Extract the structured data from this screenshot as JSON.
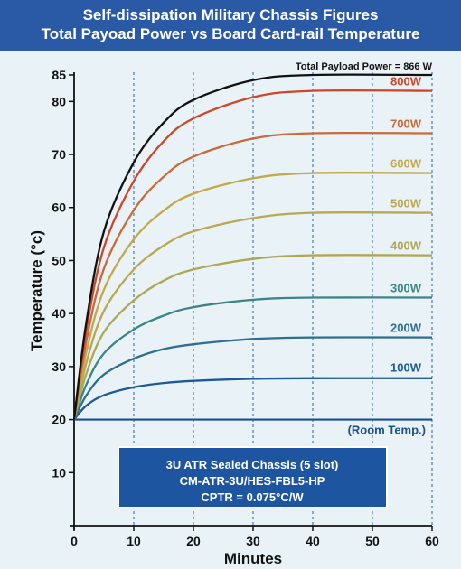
{
  "header": {
    "title_line1": "Self-dissipation Military Chassis Figures",
    "title_line2": "Total Payoad Power vs Board Card-rail Temperature"
  },
  "colors": {
    "header_bg": "#2a5aa5",
    "plot_bg": "#e9f2f7",
    "grid": "#4a77b0",
    "room_line": "#1a4f91",
    "infobox_bg": "#1d55a0"
  },
  "infobox": {
    "line1": "3U ATR Sealed Chassis (5 slot)",
    "line2": "CM-ATR-3U/HES-FBL5-HP",
    "line3": "CPTR = 0.075°C/W"
  },
  "chart_data": {
    "type": "line",
    "title": "Total Payoad Power vs Board Card-rail Temperature",
    "xlabel": "Minutes",
    "ylabel": "Temperature (°c)",
    "xlim": [
      0,
      60
    ],
    "ylim": [
      0,
      87
    ],
    "x_ticks": [
      0,
      10,
      20,
      30,
      40,
      50,
      60
    ],
    "y_ticks": [
      10,
      20,
      30,
      40,
      50,
      60,
      70,
      80,
      85
    ],
    "grid": "vertical dashed",
    "legend": "labels at right end of each curve",
    "room_temperature": {
      "value": 20,
      "label": "(Room Temp.)"
    },
    "series": [
      {
        "name": "100W",
        "plateau": 28,
        "color": "#1c5a98",
        "points": [
          [
            0,
            20
          ],
          [
            2,
            22.6
          ],
          [
            5,
            24.6
          ],
          [
            10,
            26.1
          ],
          [
            15,
            26.9
          ],
          [
            20,
            27.3
          ],
          [
            30,
            27.7
          ],
          [
            40,
            27.8
          ],
          [
            60,
            27.8
          ]
        ]
      },
      {
        "name": "200W",
        "plateau": 35.5,
        "color": "#2e6f8f",
        "points": [
          [
            0,
            20
          ],
          [
            2,
            24.5
          ],
          [
            5,
            28.5
          ],
          [
            10,
            31.5
          ],
          [
            15,
            33.3
          ],
          [
            20,
            34.2
          ],
          [
            30,
            35.2
          ],
          [
            40,
            35.5
          ],
          [
            60,
            35.5
          ]
        ]
      },
      {
        "name": "300W",
        "plateau": 43,
        "color": "#3d8585",
        "points": [
          [
            0,
            20
          ],
          [
            2,
            26.5
          ],
          [
            5,
            32.5
          ],
          [
            10,
            37
          ],
          [
            15,
            39.6
          ],
          [
            20,
            41.2
          ],
          [
            30,
            42.6
          ],
          [
            40,
            43
          ],
          [
            60,
            43
          ]
        ]
      },
      {
        "name": "400W",
        "plateau": 51,
        "color": "#aca855",
        "points": [
          [
            0,
            20
          ],
          [
            2,
            28.5
          ],
          [
            5,
            36.5
          ],
          [
            10,
            42.5
          ],
          [
            15,
            46.2
          ],
          [
            20,
            48.3
          ],
          [
            30,
            50.3
          ],
          [
            40,
            51
          ],
          [
            60,
            51
          ]
        ]
      },
      {
        "name": "500W",
        "plateau": 59,
        "color": "#b7a851",
        "points": [
          [
            0,
            20
          ],
          [
            2,
            30.5
          ],
          [
            5,
            40.5
          ],
          [
            10,
            48.3
          ],
          [
            15,
            52.8
          ],
          [
            20,
            55.5
          ],
          [
            30,
            58
          ],
          [
            40,
            59
          ],
          [
            60,
            59
          ]
        ]
      },
      {
        "name": "600W",
        "plateau": 66.5,
        "color": "#c2a94a",
        "points": [
          [
            0,
            20
          ],
          [
            2,
            32.5
          ],
          [
            5,
            44.5
          ],
          [
            10,
            54
          ],
          [
            15,
            59.4
          ],
          [
            20,
            62.6
          ],
          [
            30,
            65.5
          ],
          [
            40,
            66.5
          ],
          [
            60,
            66.5
          ]
        ]
      },
      {
        "name": "700W",
        "plateau": 74,
        "color": "#c96a3a",
        "points": [
          [
            0,
            20
          ],
          [
            2,
            34.5
          ],
          [
            5,
            48.5
          ],
          [
            10,
            59.5
          ],
          [
            15,
            65.8
          ],
          [
            20,
            69.6
          ],
          [
            30,
            73
          ],
          [
            40,
            74
          ],
          [
            60,
            74
          ]
        ]
      },
      {
        "name": "800W",
        "plateau": 82,
        "color": "#cf4627",
        "points": [
          [
            0,
            20
          ],
          [
            2,
            36.5
          ],
          [
            5,
            52.5
          ],
          [
            10,
            65
          ],
          [
            15,
            72.5
          ],
          [
            20,
            76.8
          ],
          [
            30,
            80.8
          ],
          [
            40,
            82
          ],
          [
            60,
            82
          ]
        ]
      },
      {
        "name": "Total Payload Power = 866 W",
        "plateau": 85,
        "color": "#111111",
        "points": [
          [
            0,
            20
          ],
          [
            2,
            38
          ],
          [
            5,
            55.5
          ],
          [
            10,
            68.5
          ],
          [
            15,
            76
          ],
          [
            20,
            80.3
          ],
          [
            30,
            84
          ],
          [
            40,
            85
          ],
          [
            60,
            85
          ]
        ]
      }
    ]
  }
}
